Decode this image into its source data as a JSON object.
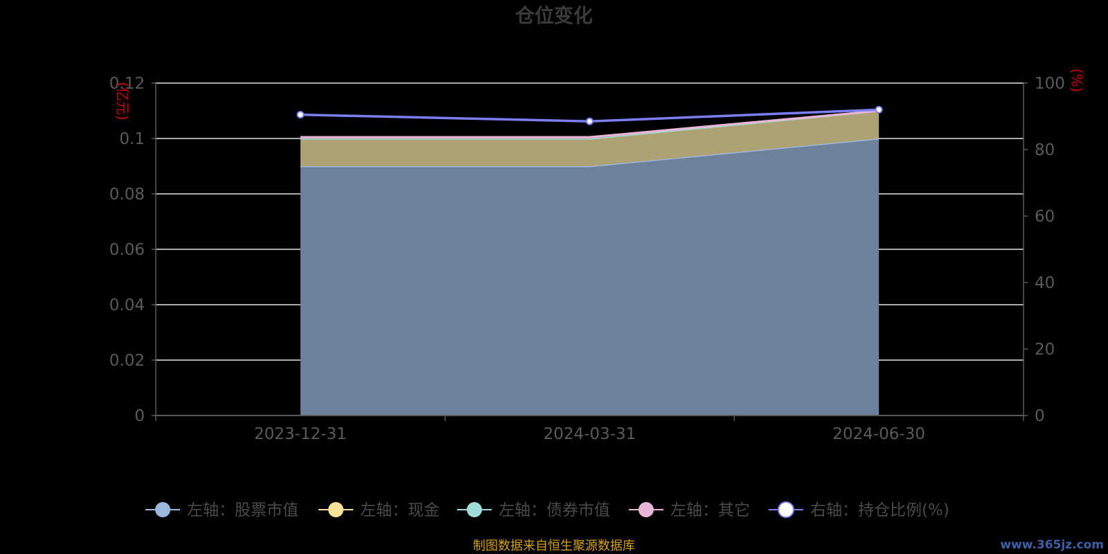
{
  "chart_data": {
    "type": "area",
    "title": "仓位变化",
    "categories": [
      "2023-12-31",
      "2024-03-31",
      "2024-06-30"
    ],
    "left_axis": {
      "unit": "(亿元)",
      "ylim": [
        0,
        0.12
      ],
      "ticks": [
        "0",
        "0.02",
        "0.04",
        "0.06",
        "0.08",
        "0.1",
        "0.12"
      ],
      "tick_values": [
        0,
        0.02,
        0.04,
        0.06,
        0.08,
        0.1,
        0.12
      ]
    },
    "right_axis": {
      "unit": "(%)",
      "ylim": [
        0,
        100
      ],
      "ticks": [
        "0",
        "20",
        "40",
        "60",
        "80",
        "100"
      ],
      "tick_values": [
        0,
        20,
        40,
        60,
        80,
        100
      ]
    },
    "grid": true,
    "legend_position": "bottom",
    "series": [
      {
        "name": "左轴：股票市值",
        "axis": "left",
        "kind": "stacked-area",
        "color": "#9eb7de",
        "fill": "#6d819c",
        "values": [
          0.09,
          0.09,
          0.1
        ]
      },
      {
        "name": "左轴：现金",
        "axis": "left",
        "kind": "stacked-area",
        "color": "#f7e49a",
        "fill": "#aca274",
        "values": [
          0.01,
          0.01,
          0.01
        ]
      },
      {
        "name": "左轴：债券市值",
        "axis": "left",
        "kind": "stacked-area",
        "color": "#9fdcd8",
        "fill": "#7fb0ad",
        "values": [
          0,
          0,
          0
        ]
      },
      {
        "name": "左轴：其它",
        "axis": "left",
        "kind": "stacked-area",
        "color": "#e9b5d6",
        "fill": "#b88fa8",
        "values": [
          0.0005,
          0.0005,
          0
        ]
      },
      {
        "name": "右轴：持仓比例(%)",
        "axis": "right",
        "kind": "line",
        "color": "#7b7ff2",
        "values": [
          90.5,
          88.5,
          92
        ]
      }
    ]
  },
  "footer": {
    "source_text": "制图数据来自恒生聚源数据库"
  },
  "watermark": {
    "text": "www.365jz.com"
  }
}
